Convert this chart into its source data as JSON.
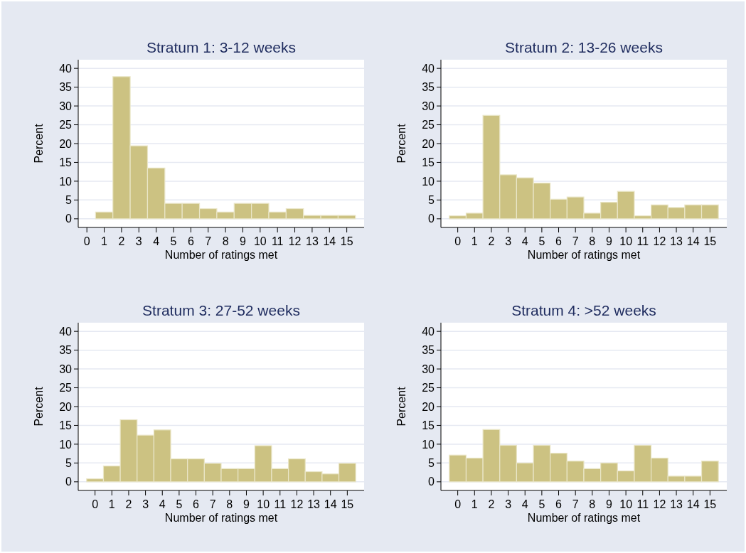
{
  "chart_data": [
    {
      "type": "histogram",
      "title": "Stratum 1: 3-12 weeks",
      "xlabel": "Number of ratings met",
      "ylabel": "Percent",
      "bins": [
        -0.5,
        0.5,
        1.5,
        2.5,
        3.5,
        4.5,
        5.5,
        6.5,
        7.5,
        8.5,
        9.5,
        10.5,
        11.5,
        12.5,
        13.5,
        14.5,
        15.5
      ],
      "values": [
        0,
        1.8,
        37.8,
        19.4,
        13.5,
        4.1,
        4.1,
        2.7,
        1.8,
        4.1,
        4.1,
        1.8,
        2.7,
        0.9,
        0.9,
        0.9
      ],
      "color": "#ccc282",
      "xlim": [
        -0.5,
        16
      ],
      "xticks": [
        0,
        1,
        2,
        3,
        4,
        5,
        6,
        7,
        8,
        9,
        10,
        11,
        12,
        13,
        14,
        15
      ],
      "ylim": [
        -2.3,
        42.3
      ],
      "yticks": [
        0,
        5,
        10,
        15,
        20,
        25,
        30,
        35,
        40
      ],
      "grid": "y"
    },
    {
      "type": "histogram",
      "title": "Stratum 2: 13-26 weeks",
      "xlabel": "Number of ratings met",
      "ylabel": "Percent",
      "bins": [
        -0.5,
        0.5,
        1.5,
        2.5,
        3.5,
        4.5,
        5.5,
        6.5,
        7.5,
        8.5,
        9.5,
        10.5,
        11.5,
        12.5,
        13.5,
        14.5,
        15.5
      ],
      "values": [
        0.8,
        1.5,
        27.5,
        11.7,
        10.9,
        9.5,
        5.2,
        5.8,
        1.5,
        4.4,
        7.3,
        0.8,
        3.7,
        3.0,
        3.7,
        3.7
      ],
      "color": "#ccc282",
      "xlim": [
        -1,
        16
      ],
      "xticks": [
        0,
        1,
        2,
        3,
        4,
        5,
        6,
        7,
        8,
        9,
        10,
        11,
        12,
        13,
        14,
        15
      ],
      "ylim": [
        -2.3,
        42.3
      ],
      "yticks": [
        0,
        5,
        10,
        15,
        20,
        25,
        30,
        35,
        40
      ],
      "grid": "y"
    },
    {
      "type": "histogram",
      "title": "Stratum 3: 27-52 weeks",
      "xlabel": "Number of ratings met",
      "ylabel": "Percent",
      "bins": [
        -0.5,
        0.5,
        1.5,
        2.5,
        3.5,
        4.5,
        5.5,
        6.5,
        7.5,
        8.5,
        9.5,
        10.5,
        11.5,
        12.5,
        13.5,
        14.5,
        15.5
      ],
      "values": [
        0.8,
        4.2,
        16.5,
        12.4,
        13.8,
        6.1,
        6.1,
        4.9,
        3.5,
        3.5,
        9.6,
        3.5,
        6.1,
        2.7,
        2.1,
        4.9
      ],
      "color": "#ccc282",
      "xlim": [
        -1,
        16
      ],
      "xticks": [
        0,
        1,
        2,
        3,
        4,
        5,
        6,
        7,
        8,
        9,
        10,
        11,
        12,
        13,
        14,
        15
      ],
      "ylim": [
        -2.3,
        42.3
      ],
      "yticks": [
        0,
        5,
        10,
        15,
        20,
        25,
        30,
        35,
        40
      ],
      "grid": "y"
    },
    {
      "type": "histogram",
      "title": "Stratum 4: >52 weeks",
      "xlabel": "Number of ratings met",
      "ylabel": "Percent",
      "bins": [
        -0.5,
        0.5,
        1.5,
        2.5,
        3.5,
        4.5,
        5.5,
        6.5,
        7.5,
        8.5,
        9.5,
        10.5,
        11.5,
        12.5,
        13.5,
        14.5,
        15.5
      ],
      "values": [
        7.1,
        6.3,
        13.9,
        9.7,
        5.0,
        9.7,
        7.6,
        5.5,
        3.5,
        5.0,
        2.9,
        9.7,
        6.3,
        1.5,
        1.5,
        5.5
      ],
      "color": "#ccc282",
      "xlim": [
        -1,
        16
      ],
      "xticks": [
        0,
        1,
        2,
        3,
        4,
        5,
        6,
        7,
        8,
        9,
        10,
        11,
        12,
        13,
        14,
        15
      ],
      "ylim": [
        -2.3,
        42.3
      ],
      "yticks": [
        0,
        5,
        10,
        15,
        20,
        25,
        30,
        35,
        40
      ],
      "grid": "y"
    }
  ]
}
